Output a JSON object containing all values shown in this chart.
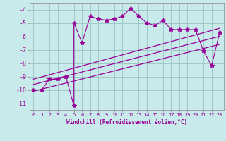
{
  "xlabel": "Windchill (Refroidissement éolien,°C)",
  "ylabel": "",
  "bg_color": "#c8eaea",
  "grid_color": "#a0c8c8",
  "line_color": "#990099",
  "xlim": [
    -0.5,
    23.5
  ],
  "ylim": [
    -11.5,
    -3.5
  ],
  "xticks": [
    0,
    1,
    2,
    3,
    4,
    5,
    6,
    7,
    8,
    9,
    10,
    11,
    12,
    13,
    14,
    15,
    16,
    17,
    18,
    19,
    20,
    21,
    22,
    23
  ],
  "yticks": [
    -4,
    -5,
    -6,
    -7,
    -8,
    -9,
    -10,
    -11
  ],
  "scatter_x": [
    0,
    1,
    2,
    3,
    4,
    5,
    5,
    6,
    7,
    8,
    9,
    10,
    11,
    12,
    13,
    14,
    15,
    16,
    17,
    18,
    19,
    20,
    21,
    22,
    23
  ],
  "scatter_y": [
    -10,
    -10,
    -9.2,
    -9.2,
    -9.0,
    -11.2,
    -5.0,
    -6.5,
    -4.5,
    -4.7,
    -4.8,
    -4.7,
    -4.5,
    -3.9,
    -4.5,
    -5.0,
    -5.2,
    -4.8,
    -5.5,
    -5.5,
    -5.5,
    -5.5,
    -7.1,
    -8.2,
    -5.7
  ],
  "reg_lines": [
    {
      "x0": 0,
      "y0": -9.2,
      "x1": 23,
      "y1": -5.4
    },
    {
      "x0": 0,
      "y0": -9.6,
      "x1": 23,
      "y1": -6.0
    },
    {
      "x0": 0,
      "y0": -10.1,
      "x1": 23,
      "y1": -6.6
    }
  ],
  "marker_style": "*",
  "marker_size": 4
}
